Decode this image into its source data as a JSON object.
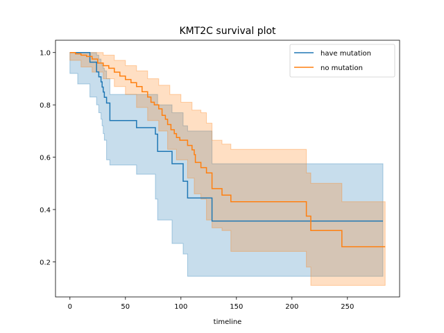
{
  "chart_data": {
    "type": "line",
    "title": "KMT2C survival plot",
    "xlabel": "timeline",
    "ylabel": "",
    "xlim": [
      -13,
      297
    ],
    "ylim": [
      0.066,
      1.047
    ],
    "xticks": [
      0,
      50,
      100,
      150,
      200,
      250
    ],
    "yticks": [
      0.2,
      0.4,
      0.6,
      0.8,
      1.0
    ],
    "grid": false,
    "legend_position": "top-right",
    "series": [
      {
        "name": "have mutation",
        "color": "#1f77b4",
        "steps": [
          [
            0,
            1.0
          ],
          [
            18,
            0.963
          ],
          [
            24,
            0.926
          ],
          [
            26,
            0.907
          ],
          [
            28,
            0.888
          ],
          [
            29,
            0.868
          ],
          [
            30,
            0.849
          ],
          [
            31,
            0.829
          ],
          [
            33,
            0.807
          ],
          [
            36,
            0.74
          ],
          [
            60,
            0.713
          ],
          [
            77,
            0.688
          ],
          [
            79,
            0.622
          ],
          [
            92,
            0.575
          ],
          [
            102,
            0.508
          ],
          [
            106,
            0.444
          ],
          [
            128,
            0.356
          ],
          [
            282,
            0.356
          ]
        ],
        "ci_upper": [
          [
            0,
            1.0
          ],
          [
            7,
            1.0
          ],
          [
            18,
            1.0
          ],
          [
            24,
            0.99
          ],
          [
            26,
            0.975
          ],
          [
            28,
            0.96
          ],
          [
            29,
            0.95
          ],
          [
            30,
            0.94
          ],
          [
            31,
            0.93
          ],
          [
            33,
            0.9
          ],
          [
            36,
            0.84
          ],
          [
            77,
            0.84
          ],
          [
            79,
            0.8
          ],
          [
            92,
            0.77
          ],
          [
            102,
            0.72
          ],
          [
            106,
            0.7
          ],
          [
            128,
            0.575
          ],
          [
            282,
            0.575
          ]
        ],
        "ci_lower": [
          [
            0,
            0.99
          ],
          [
            7,
            0.92
          ],
          [
            18,
            0.88
          ],
          [
            24,
            0.83
          ],
          [
            26,
            0.8
          ],
          [
            28,
            0.77
          ],
          [
            29,
            0.745
          ],
          [
            30,
            0.72
          ],
          [
            31,
            0.69
          ],
          [
            33,
            0.665
          ],
          [
            36,
            0.59
          ],
          [
            60,
            0.57
          ],
          [
            77,
            0.535
          ],
          [
            79,
            0.44
          ],
          [
            92,
            0.36
          ],
          [
            102,
            0.27
          ],
          [
            106,
            0.23
          ],
          [
            128,
            0.145
          ],
          [
            282,
            0.145
          ]
        ]
      },
      {
        "name": "no mutation",
        "color": "#ff7f0e",
        "steps": [
          [
            0,
            1.0
          ],
          [
            5,
            0.995
          ],
          [
            10,
            0.99
          ],
          [
            15,
            0.985
          ],
          [
            20,
            0.975
          ],
          [
            25,
            0.96
          ],
          [
            30,
            0.95
          ],
          [
            35,
            0.94
          ],
          [
            40,
            0.925
          ],
          [
            45,
            0.91
          ],
          [
            50,
            0.897
          ],
          [
            55,
            0.885
          ],
          [
            60,
            0.87
          ],
          [
            65,
            0.85
          ],
          [
            70,
            0.83
          ],
          [
            73,
            0.81
          ],
          [
            76,
            0.8
          ],
          [
            80,
            0.785
          ],
          [
            83,
            0.76
          ],
          [
            86,
            0.745
          ],
          [
            88,
            0.725
          ],
          [
            91,
            0.705
          ],
          [
            94,
            0.69
          ],
          [
            96,
            0.675
          ],
          [
            99,
            0.665
          ],
          [
            106,
            0.645
          ],
          [
            110,
            0.628
          ],
          [
            112,
            0.61
          ],
          [
            113,
            0.58
          ],
          [
            118,
            0.56
          ],
          [
            123,
            0.54
          ],
          [
            128,
            0.48
          ],
          [
            137,
            0.455
          ],
          [
            145,
            0.43
          ],
          [
            213,
            0.375
          ],
          [
            217,
            0.32
          ],
          [
            245,
            0.258
          ],
          [
            284,
            0.258
          ]
        ],
        "ci_upper": [
          [
            0,
            1.0
          ],
          [
            20,
            1.0
          ],
          [
            30,
            0.99
          ],
          [
            40,
            0.97
          ],
          [
            50,
            0.95
          ],
          [
            60,
            0.93
          ],
          [
            70,
            0.9
          ],
          [
            80,
            0.875
          ],
          [
            90,
            0.84
          ],
          [
            100,
            0.81
          ],
          [
            110,
            0.78
          ],
          [
            118,
            0.77
          ],
          [
            123,
            0.73
          ],
          [
            128,
            0.665
          ],
          [
            137,
            0.65
          ],
          [
            145,
            0.63
          ],
          [
            213,
            0.54
          ],
          [
            217,
            0.5
          ],
          [
            245,
            0.43
          ],
          [
            284,
            0.43
          ]
        ],
        "ci_lower": [
          [
            0,
            0.98
          ],
          [
            10,
            0.97
          ],
          [
            20,
            0.945
          ],
          [
            30,
            0.925
          ],
          [
            40,
            0.9
          ],
          [
            50,
            0.87
          ],
          [
            60,
            0.84
          ],
          [
            70,
            0.79
          ],
          [
            80,
            0.74
          ],
          [
            88,
            0.7
          ],
          [
            96,
            0.63
          ],
          [
            106,
            0.59
          ],
          [
            112,
            0.52
          ],
          [
            118,
            0.46
          ],
          [
            123,
            0.44
          ],
          [
            128,
            0.36
          ],
          [
            137,
            0.33
          ],
          [
            145,
            0.32
          ],
          [
            213,
            0.24
          ],
          [
            217,
            0.18
          ],
          [
            245,
            0.11
          ],
          [
            284,
            0.11
          ]
        ]
      }
    ]
  }
}
